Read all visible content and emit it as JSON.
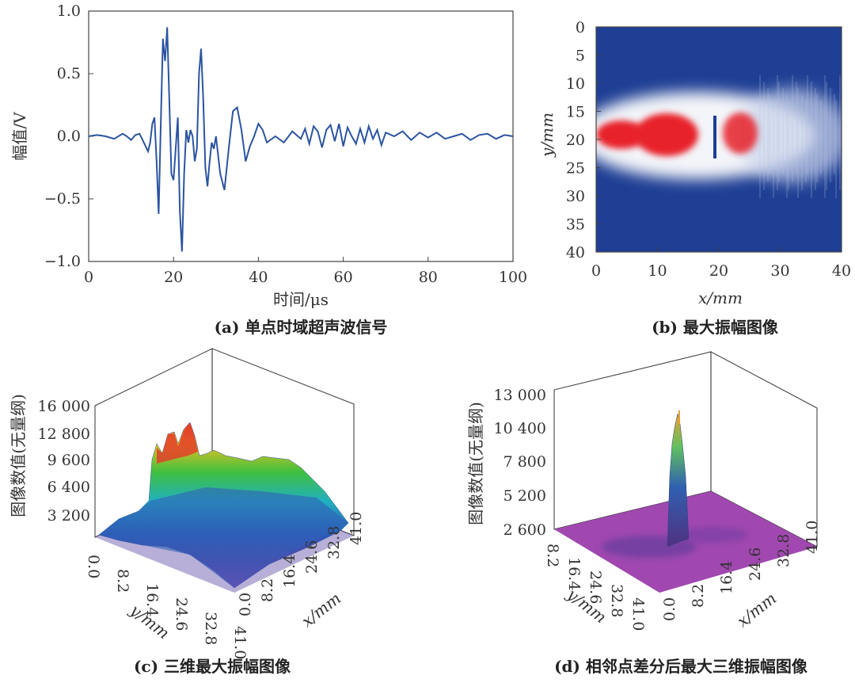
{
  "chart_data": [
    {
      "panel": "a",
      "type": "line",
      "caption": "(a) 单点时域超声波信号",
      "xlabel": "时间/μs",
      "ylabel": "幅值/V",
      "xlim": [
        0,
        100
      ],
      "ylim": [
        -1.0,
        1.0
      ],
      "xticks": [
        "0",
        "20",
        "40",
        "60",
        "80",
        "100"
      ],
      "yticks": [
        "1.0",
        "0.5",
        "0.0",
        "−0.5",
        "−1.0"
      ],
      "series": [
        {
          "color": "#2b54a0",
          "x": [
            0,
            2,
            4,
            6,
            8,
            9,
            10,
            11,
            12,
            13,
            14,
            14.5,
            15,
            15.5,
            16,
            16.5,
            17,
            17.5,
            18,
            18.5,
            19,
            19.5,
            20,
            20.5,
            21,
            21.5,
            22,
            22.5,
            23,
            23.5,
            24,
            24.5,
            25,
            25.5,
            26,
            26.5,
            27,
            27.5,
            28,
            28.5,
            29,
            29.5,
            30,
            31,
            32,
            33,
            34,
            35,
            36,
            37,
            38,
            39,
            40,
            41,
            42,
            44,
            46,
            48,
            50,
            51,
            52,
            53,
            54,
            55,
            56,
            57,
            58,
            59,
            60,
            61,
            62,
            63,
            64,
            65,
            66,
            67,
            68,
            69,
            70,
            72,
            74,
            76,
            78,
            80,
            82,
            84,
            86,
            88,
            90,
            92,
            94,
            96,
            98,
            100
          ],
          "y": [
            0.0,
            0.01,
            0.0,
            -0.02,
            0.02,
            0.0,
            -0.03,
            0.01,
            0.02,
            -0.05,
            -0.12,
            -0.05,
            0.1,
            0.15,
            -0.2,
            -0.62,
            0.1,
            0.78,
            0.6,
            0.87,
            0.3,
            -0.3,
            -0.35,
            -0.1,
            0.15,
            -0.6,
            -0.92,
            -0.3,
            0.05,
            -0.05,
            0.05,
            0.0,
            -0.2,
            -0.1,
            0.5,
            0.7,
            0.3,
            -0.25,
            -0.4,
            -0.2,
            -0.05,
            -0.1,
            0.0,
            -0.3,
            -0.43,
            -0.1,
            0.2,
            0.23,
            0.05,
            -0.2,
            -0.08,
            0.0,
            0.1,
            0.05,
            -0.05,
            0.0,
            -0.05,
            0.04,
            -0.02,
            0.06,
            -0.06,
            0.08,
            0.04,
            -0.09,
            0.05,
            0.09,
            -0.04,
            0.1,
            -0.08,
            0.07,
            0.0,
            -0.06,
            0.06,
            -0.05,
            0.08,
            -0.02,
            0.05,
            -0.07,
            0.03,
            0.0,
            0.04,
            -0.03,
            0.03,
            -0.01,
            0.03,
            -0.02,
            0.0,
            0.02,
            -0.03,
            0.01,
            0.02,
            -0.02,
            0.01,
            0.0
          ]
        }
      ]
    },
    {
      "panel": "b",
      "type": "heatmap",
      "caption": "(b) 最大振幅图像",
      "xlabel": "x/mm",
      "ylabel": "y/mm",
      "xlim": [
        0,
        40
      ],
      "ylim": [
        0,
        40
      ],
      "xticks": [
        "0",
        "10",
        "20",
        "30",
        "40"
      ],
      "yticks": [
        "0",
        "5",
        "10",
        "15",
        "20",
        "25",
        "30",
        "35",
        "40"
      ],
      "colors": {
        "low": "#1f3f94",
        "mid": "#ffffff",
        "high": "#e8202a"
      }
    },
    {
      "panel": "c",
      "type": "surface",
      "caption": "(c) 三维最大振幅图像",
      "xlabel": "x/mm",
      "ylabel": "y/mm",
      "zlabel": "图像数值(无量纲)",
      "zticks": [
        "16 000",
        "12 800",
        "9 600",
        "6 400",
        "3 200"
      ],
      "xticks": [
        "0.0",
        "8.2",
        "16.4",
        "24.6",
        "32.8",
        "41.0"
      ],
      "yticks": [
        "0.0",
        "8.2",
        "16.4",
        "24.6",
        "32.8",
        "41.0"
      ]
    },
    {
      "panel": "d",
      "type": "surface",
      "caption": "(d) 相邻点差分后最大三维振幅图像",
      "xlabel": "x/mm",
      "ylabel": "y/mm",
      "zlabel": "图像数值(无量纲)",
      "zticks": [
        "13 000",
        "10 400",
        "7 800",
        "5 200",
        "2 600"
      ],
      "xticks": [
        "0.0",
        "8.2",
        "16.4",
        "24.6",
        "32.8",
        "41.0"
      ],
      "yticks": [
        "8.2",
        "16.4",
        "24.6",
        "32.8",
        "41.0"
      ]
    }
  ]
}
